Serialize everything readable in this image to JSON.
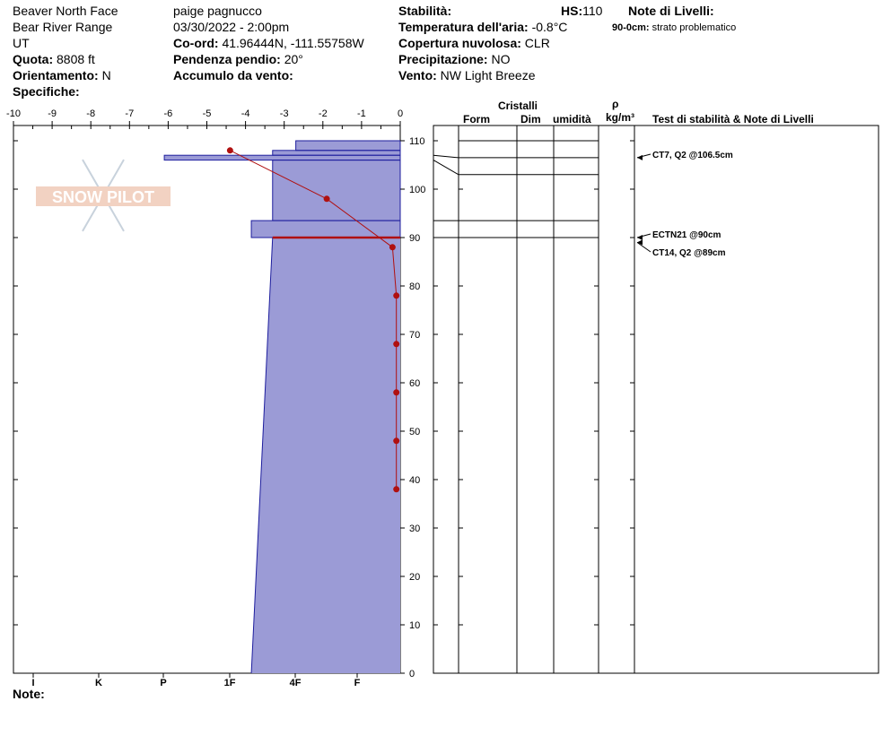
{
  "header": {
    "left": {
      "location": "Beaver North Face",
      "range": "Bear River Range",
      "state": "UT",
      "quota_label": "Quota:",
      "quota_value": "8808 ft",
      "orientation_label": "Orientamento:",
      "orientation_value": "N",
      "specifics_label": "Specifiche:"
    },
    "middle": {
      "observer": "paige pagnucco",
      "datetime": "03/30/2022 - 2:00pm",
      "coord_label": "Co-ord:",
      "coord_value": "41.96444N, -111.55758W",
      "slope_label": "Pendenza pendio:",
      "slope_value": "20°",
      "wind_loading_label": "Accumulo da vento:",
      "wind_loading_value": ""
    },
    "right": {
      "stability_label": "Stabilità:",
      "stability_value": "",
      "hs_label": "HS:",
      "hs_value": "110",
      "air_temp_label": "Temperatura dell'aria:",
      "air_temp_value": "-0.8°C",
      "cloud_label": "Copertura nuvolosa:",
      "cloud_value": "CLR",
      "precip_label": "Precipitazione:",
      "precip_value": "NO",
      "wind_label": "Vento:",
      "wind_value": "NW Light Breeze"
    },
    "layer_notes": {
      "title": "Note di Livelli:",
      "entries": [
        {
          "range": "90-0cm:",
          "text": "strato problematico"
        }
      ]
    }
  },
  "footer": {
    "note_label": "Note:"
  },
  "logo": {
    "text": "SNOW PILOT"
  },
  "columns": {
    "crystals": "Cristalli",
    "form": "Form",
    "size": "Dim",
    "moisture": "umidità",
    "density_symbol": "ρ",
    "density_unit": "kg/m³",
    "tests": "Test di stabilità & Note di Livelli"
  },
  "colors": {
    "hardness_fill": "#9b9bd6",
    "hardness_stroke": "#1e1e9e",
    "temperature": "#b01010",
    "grid": "#000000"
  },
  "chart_data": {
    "type": "area",
    "temperature_axis": {
      "label": "",
      "ticks": [
        "-10",
        "-9",
        "-8",
        "-7",
        "-6",
        "-5",
        "-4",
        "-3",
        "-2",
        "-1",
        "0"
      ],
      "range": [
        -10,
        0
      ]
    },
    "hardness_axis": {
      "ticks": [
        "I",
        "K",
        "P",
        "1F",
        "4F",
        "F"
      ],
      "values": [
        9,
        7,
        5,
        3,
        1,
        -1
      ]
    },
    "height_axis": {
      "range": [
        0,
        110
      ],
      "ticks": [
        "0",
        "10",
        "20",
        "30",
        "40",
        "50",
        "60",
        "70",
        "80",
        "90",
        "100",
        "110"
      ]
    },
    "hardness_profile": [
      {
        "from": 110,
        "to": 108,
        "left": -2.7
      },
      {
        "from": 108,
        "to": 107,
        "left": -3.3
      },
      {
        "from": 107,
        "to": 106,
        "left": -6.1
      },
      {
        "from": 106,
        "to": 93.5,
        "left": -3.3
      },
      {
        "from": 93.5,
        "to": 90,
        "left": -3.85
      },
      {
        "from": 90,
        "to": 0,
        "left_top": -3.3,
        "left_bottom": -3.85
      }
    ],
    "problem_layer_cm": 90,
    "temperature_profile": [
      {
        "h": 108,
        "t": -4.4
      },
      {
        "h": 98,
        "t": -1.9
      },
      {
        "h": 88,
        "t": -0.2
      },
      {
        "h": 78,
        "t": -0.1
      },
      {
        "h": 68,
        "t": -0.1
      },
      {
        "h": 58,
        "t": -0.1
      },
      {
        "h": 48,
        "t": -0.1
      },
      {
        "h": 38,
        "t": -0.1
      }
    ],
    "layer_boundaries": [
      110,
      106.5,
      103,
      93.5,
      90
    ],
    "stability_tests": [
      {
        "label": "CT7, Q2 @106.5cm",
        "h": 106.5
      },
      {
        "label": "ECTN21 @90cm",
        "h": 90
      },
      {
        "label": "CT14, Q2 @89cm",
        "h": 89
      }
    ]
  }
}
